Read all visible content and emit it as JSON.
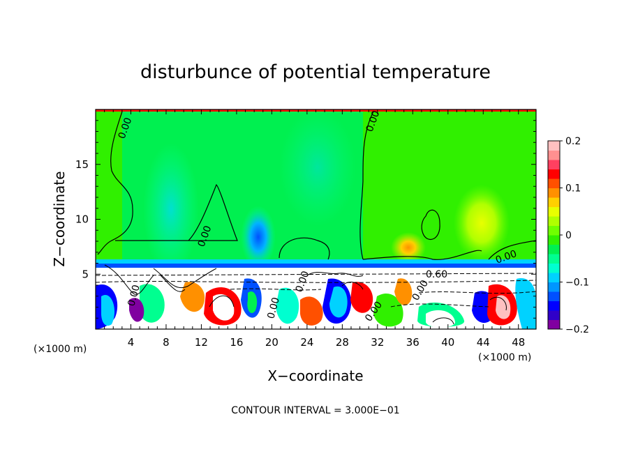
{
  "chart_data": {
    "type": "heatmap",
    "title": "disturbunce of potential temperature",
    "xlabel": "X−coordinate",
    "ylabel": "Z−coordinate",
    "x_unit_left": "(×1000 m)",
    "x_unit_right": "(×1000 m)",
    "x_ticks": [
      4,
      8,
      12,
      16,
      20,
      24,
      28,
      32,
      36,
      40,
      44,
      48
    ],
    "y_ticks": [
      5,
      10,
      15
    ],
    "xlim": [
      0,
      50
    ],
    "ylim": [
      0,
      20
    ],
    "footer": "CONTOUR INTERVAL = 3.000E−01",
    "colorbar": {
      "range": [
        -0.2,
        0.2
      ],
      "tick_values": [
        0.2,
        0.1,
        0,
        -0.1,
        -0.2
      ],
      "tick_labels": [
        "0.2",
        "0.1",
        "0",
        "−0.1",
        "−0.2"
      ],
      "colors": [
        "#8000a0",
        "#3000c8",
        "#0000ff",
        "#0050ff",
        "#0096ff",
        "#00d2ff",
        "#00ffd0",
        "#00ff90",
        "#00f050",
        "#30f000",
        "#70ff00",
        "#b0ff00",
        "#e8ff00",
        "#ffd000",
        "#ff9000",
        "#ff5000",
        "#ff0000",
        "#ff4060",
        "#ff9090",
        "#ffc0c0"
      ]
    },
    "contour_labels": [
      "0.00",
      "0.00",
      "0.00",
      "0.00",
      "0.60",
      "0.00",
      "0.00",
      "0.00",
      "0.00",
      "0.00"
    ]
  }
}
